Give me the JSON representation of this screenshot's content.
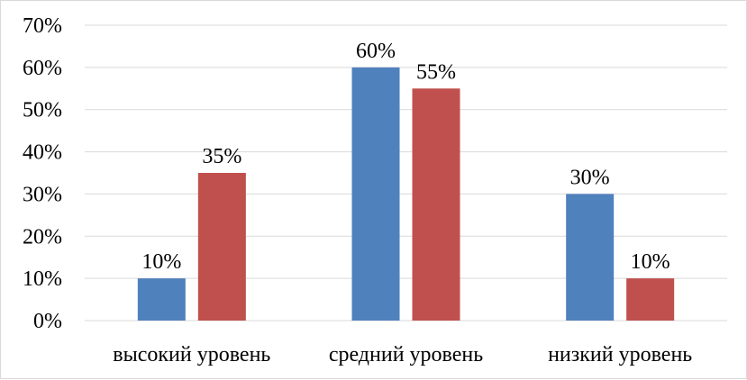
{
  "chart_data": {
    "type": "bar",
    "categories": [
      "высокий уровень",
      "средний уровень",
      "низкий уровень"
    ],
    "series": [
      {
        "values": [
          10,
          60,
          30
        ],
        "color": "#4f81bd"
      },
      {
        "values": [
          35,
          55,
          10
        ],
        "color": "#c0504d"
      }
    ],
    "data_labels": [
      [
        "10%",
        "60%",
        "30%"
      ],
      [
        "35%",
        "55%",
        "10%"
      ]
    ],
    "y_ticks": [
      "0%",
      "10%",
      "20%",
      "30%",
      "40%",
      "50%",
      "60%",
      "70%"
    ],
    "ylim": [
      0,
      70
    ],
    "y_unit": "%",
    "grid": true,
    "legend": "none",
    "gridline_color": "#d9d9d9",
    "title": "",
    "xlabel": "",
    "ylabel": ""
  }
}
